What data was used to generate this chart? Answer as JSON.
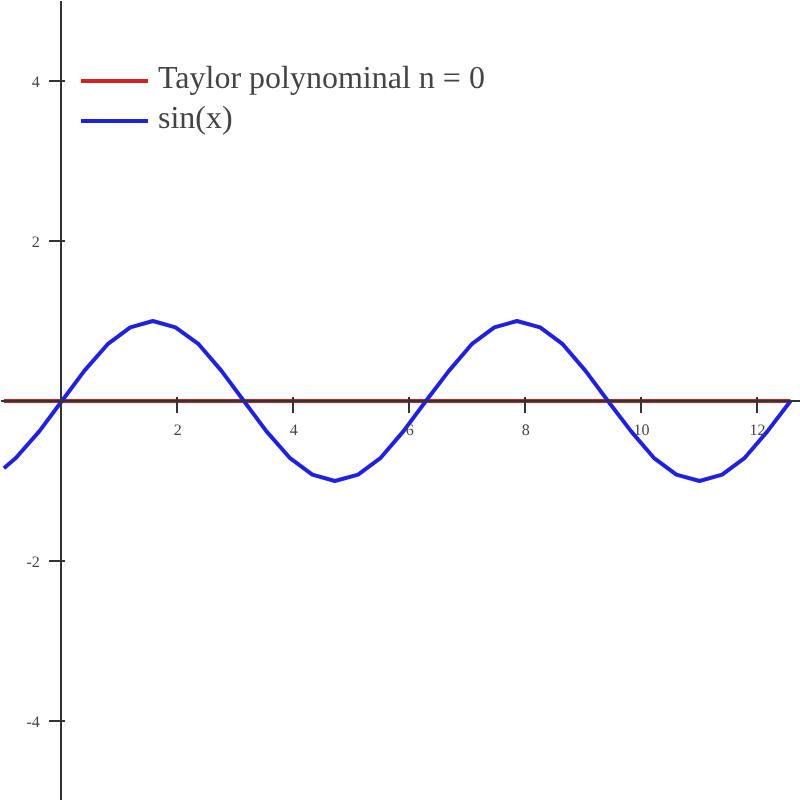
{
  "chart_data": {
    "type": "line",
    "xlim": [
      -1.05,
      12.75
    ],
    "ylim": [
      -5,
      5
    ],
    "xticks": [
      2,
      4,
      6,
      8,
      10,
      12
    ],
    "yticks": [
      -4,
      -2,
      2,
      4
    ],
    "grid": false,
    "legend": "top left",
    "marker": "none",
    "line_style": "solid",
    "series": [
      {
        "name": "Taylor polynominal n = 0",
        "color": "#d42020",
        "x": [
          -1,
          12.57
        ],
        "values": [
          0,
          0
        ]
      },
      {
        "name": "sin(x)",
        "color": "#2020e0",
        "x": [
          -1,
          -0.79,
          -0.39,
          0,
          0.39,
          0.79,
          1.18,
          1.57,
          1.96,
          2.36,
          2.75,
          3.14,
          3.53,
          3.93,
          4.32,
          4.71,
          5.11,
          5.5,
          5.89,
          6.28,
          6.68,
          7.07,
          7.46,
          7.85,
          8.25,
          8.64,
          9.03,
          9.42,
          9.82,
          10.21,
          10.6,
          11.0,
          11.39,
          11.78,
          12.17,
          12.57
        ],
        "values": [
          -0.84,
          -0.71,
          -0.38,
          0,
          0.38,
          0.71,
          0.92,
          1,
          0.92,
          0.71,
          0.38,
          0,
          -0.38,
          -0.71,
          -0.92,
          -1,
          -0.92,
          -0.71,
          -0.38,
          0,
          0.38,
          0.71,
          0.92,
          1,
          0.92,
          0.71,
          0.38,
          0,
          -0.38,
          -0.71,
          -0.92,
          -1,
          -0.92,
          -0.71,
          -0.38,
          0
        ]
      }
    ]
  }
}
